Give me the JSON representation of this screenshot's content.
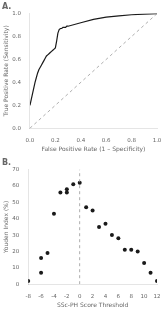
{
  "chart_data": [
    {
      "type": "line",
      "title": "A.",
      "xlabel": "False Positive Rate (1 – Specificity)",
      "ylabel": "True Positive Rate (Sensitivity)",
      "xlim": [
        0,
        1
      ],
      "ylim": [
        0,
        1
      ],
      "xticks": [
        {
          "value": 0,
          "label": "0.0"
        },
        0.2,
        0.4,
        0.6,
        0.8,
        {
          "value": 1.0,
          "label": "1.0"
        }
      ],
      "yticks": [
        {
          "value": 0,
          "label": "0.0"
        },
        0.2,
        0.4,
        0.6,
        0.8,
        {
          "value": 1.0,
          "label": "1.0"
        }
      ],
      "grid": false,
      "series": [
        {
          "type": "line",
          "line_style": "dashed",
          "color": "#999999",
          "x": [
            0,
            1
          ],
          "values": [
            0,
            1
          ]
        },
        {
          "type": "line",
          "line_style": "solid",
          "color": "#1a1a1a",
          "x": [
            0.0,
            0.01,
            0.02,
            0.03,
            0.04,
            0.05,
            0.06,
            0.07,
            0.08,
            0.09,
            0.1,
            0.11,
            0.12,
            0.13,
            0.14,
            0.15,
            0.16,
            0.17,
            0.18,
            0.19,
            0.2,
            0.21,
            0.22,
            0.23,
            0.24,
            0.25,
            0.26,
            0.27,
            0.28,
            0.29,
            0.3,
            0.4,
            0.5,
            0.6,
            0.7,
            0.8,
            0.9,
            1.0
          ],
          "values": [
            0.2,
            0.25,
            0.3,
            0.35,
            0.4,
            0.44,
            0.48,
            0.51,
            0.53,
            0.55,
            0.57,
            0.59,
            0.61,
            0.63,
            0.64,
            0.65,
            0.66,
            0.67,
            0.68,
            0.69,
            0.7,
            0.76,
            0.83,
            0.86,
            0.87,
            0.87,
            0.88,
            0.88,
            0.88,
            0.89,
            0.89,
            0.92,
            0.95,
            0.97,
            0.98,
            0.99,
            0.995,
            1.0
          ]
        }
      ]
    },
    {
      "type": "scatter",
      "title": "B.",
      "xlabel": "SSc-PH Score Threshold",
      "ylabel": "Youden Index (%)",
      "xlim": [
        -8,
        12
      ],
      "ylim": [
        0,
        70
      ],
      "xticks": [
        -8,
        -6,
        -4,
        -2,
        0,
        2,
        4,
        6,
        8,
        10,
        12
      ],
      "yticks": [
        0,
        10,
        20,
        30,
        40,
        50,
        60,
        70
      ],
      "grid": false,
      "series": [
        {
          "type": "line",
          "line_style": "dashed",
          "color": "#999999",
          "x": [
            0,
            0
          ],
          "values": [
            0,
            70
          ]
        },
        {
          "type": "scatter",
          "marker": "circle",
          "color": "#1a1a1a",
          "x": [
            -8,
            -6,
            -6,
            -5,
            -4,
            -3,
            -2,
            -2,
            -1,
            0,
            1,
            2,
            3,
            4,
            5,
            6,
            7,
            8,
            9,
            10,
            11,
            12
          ],
          "values": [
            2,
            7,
            16,
            19,
            43,
            56,
            56,
            58,
            61,
            62,
            47,
            45,
            35,
            37,
            30,
            28,
            21,
            21,
            20,
            13,
            7,
            2
          ]
        }
      ]
    }
  ]
}
